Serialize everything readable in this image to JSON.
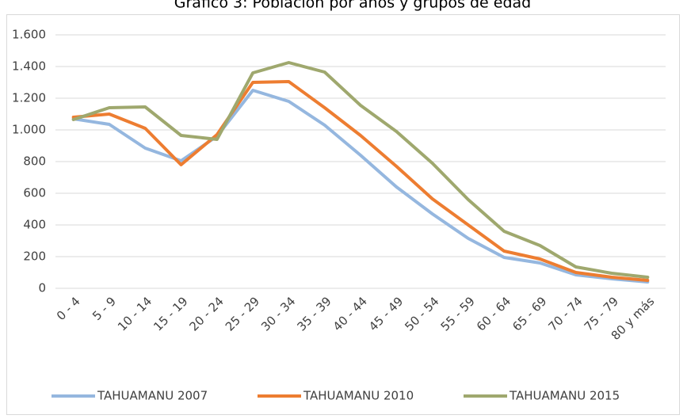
{
  "chart_data": {
    "type": "line",
    "title": "Gráfico 3: Población por años y grupos de edad",
    "categories": [
      "0 - 4",
      "5 - 9",
      "10 - 14",
      "15 - 19",
      "20 - 24",
      "25 - 29",
      "30 - 34",
      "35 - 39",
      "40 - 44",
      "45 - 49",
      "50 - 54",
      "55 - 59",
      "60 - 64",
      "65 - 69",
      "70 - 74",
      "75 - 79",
      "80 y más"
    ],
    "series": [
      {
        "name": "TAHUAMANU 2007",
        "color": "#95b7df",
        "values": [
          1070,
          1035,
          885,
          805,
          960,
          1250,
          1180,
          1030,
          840,
          640,
          470,
          315,
          195,
          160,
          85,
          60,
          40
        ]
      },
      {
        "name": "TAHUAMANU 2010",
        "color": "#ed7d31",
        "values": [
          1080,
          1100,
          1010,
          780,
          970,
          1300,
          1305,
          1140,
          965,
          770,
          565,
          400,
          235,
          185,
          100,
          70,
          50
        ]
      },
      {
        "name": "TAHUAMANU 2015",
        "color": "#9fa86e",
        "values": [
          1065,
          1140,
          1145,
          965,
          940,
          1360,
          1425,
          1365,
          1155,
          990,
          790,
          560,
          360,
          270,
          135,
          95,
          70
        ]
      }
    ],
    "ylim": [
      0,
      1600
    ],
    "yticks": [
      0,
      200,
      400,
      600,
      800,
      {
        "value": 1000,
        "label": "1.000"
      },
      {
        "value": 1200,
        "label": "1.200"
      },
      {
        "value": 1400,
        "label": "1.400"
      },
      {
        "value": 1600,
        "label": "1.600"
      }
    ],
    "grid": true,
    "legend": "bottom"
  }
}
